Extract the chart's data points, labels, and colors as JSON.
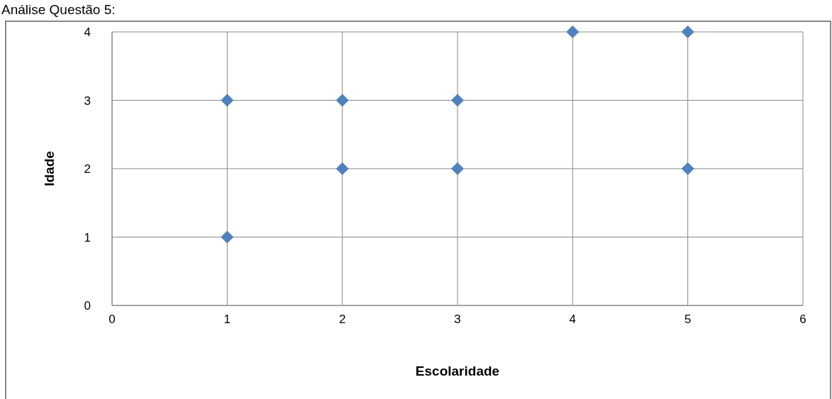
{
  "chart_data": {
    "type": "scatter",
    "title": "Análise Questão 5:",
    "xlabel": "Escolaridade",
    "ylabel": "Idade",
    "x": [
      1,
      1,
      2,
      2,
      3,
      3,
      4,
      5,
      5
    ],
    "series": [
      {
        "color": "#4f81bd",
        "values": [
          3,
          1,
          3,
          2,
          3,
          2,
          4,
          4,
          2
        ]
      }
    ],
    "xlim": [
      0,
      6
    ],
    "xticks": [
      0,
      1,
      2,
      3,
      4,
      5,
      6
    ],
    "ylim": [
      0,
      4
    ],
    "yticks": [
      0,
      1,
      2,
      3,
      4
    ],
    "grid": true,
    "marker": "diamond"
  }
}
